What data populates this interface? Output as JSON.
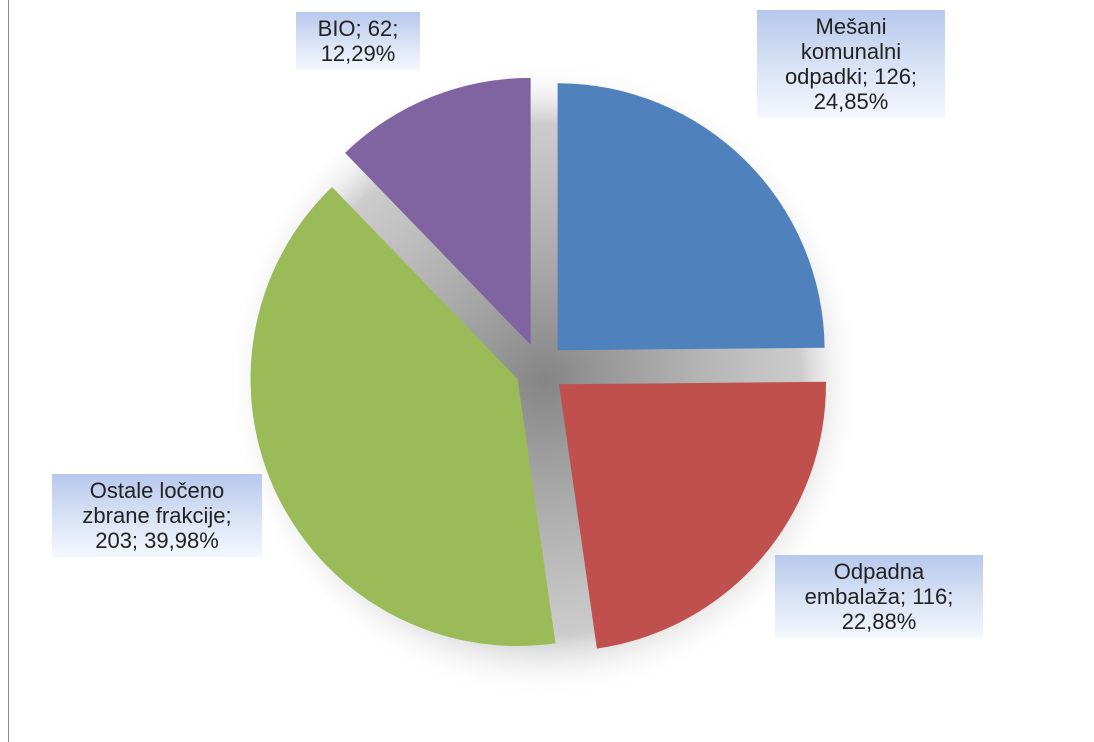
{
  "chart_data": {
    "type": "pie",
    "categories": [
      "Mešani komunalni odpadki",
      "Odpadna embalaža",
      "Ostale ločeno zbrane frakcije",
      "BIO"
    ],
    "values": [
      126,
      116,
      203,
      62
    ],
    "value_labels": [
      "Mešani komunalni odpadki; 126; 24,85%",
      "Odpadna embalaža; 116; 22,88%",
      "Ostale ločeno zbrane frakcije; 203; 39,98%",
      "BIO; 62; 12,29%"
    ],
    "colors": [
      "#4f81bd",
      "#c0504d",
      "#9bbb59",
      "#8064a2"
    ]
  }
}
